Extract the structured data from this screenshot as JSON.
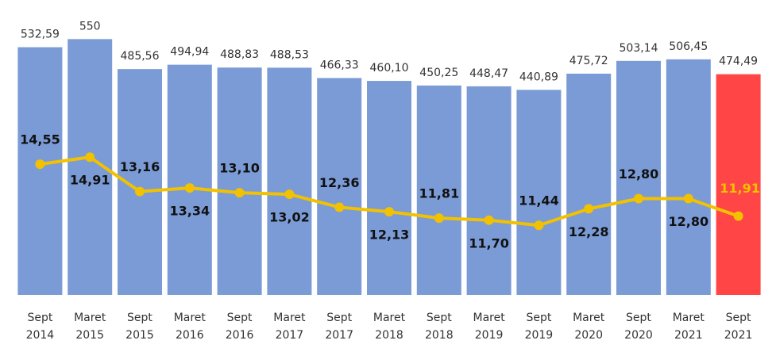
{
  "chart_data": {
    "type": "bar-line",
    "categories": [
      "Sept 2014",
      "Maret 2015",
      "Sept 2015",
      "Maret 2016",
      "Sept 2016",
      "Maret 2017",
      "Sept 2017",
      "Maret 2018",
      "Sept 2018",
      "Maret 2019",
      "Sept 2019",
      "Maret 2020",
      "Sept 2020",
      "Maret 2021",
      "Sept 2021"
    ],
    "ylim": [
      0,
      600
    ],
    "y2lim": [
      7.9,
      22.1
    ],
    "series": [
      {
        "type": "bar",
        "color": "#7b9bd6",
        "highlight_color": "#ff4545",
        "values": [
          532.59,
          550,
          485.56,
          494.94,
          488.83,
          488.53,
          466.33,
          460.1,
          450.25,
          448.47,
          440.89,
          475.72,
          503.14,
          506.45,
          474.49
        ],
        "value_labels": [
          "532,59",
          "550",
          "485,56",
          "494,94",
          "488,83",
          "488,53",
          "466,33",
          "460,10",
          "450,25",
          "448,47",
          "440,89",
          "475,72",
          "503,14",
          "506,45",
          "474,49"
        ]
      },
      {
        "type": "line",
        "axis": "y2",
        "color": "#f2c100",
        "values": [
          14.55,
          14.91,
          13.16,
          13.34,
          13.1,
          13.02,
          12.36,
          12.13,
          11.81,
          11.7,
          11.44,
          12.28,
          12.8,
          12.8,
          11.91
        ],
        "value_labels": [
          "14,55",
          "14,91",
          "13,16",
          "13,34",
          "13,10",
          "13,02",
          "12,36",
          "12,13",
          "11,81",
          "11,70",
          "11,44",
          "12,28",
          "12,80",
          "12,80",
          "11,91"
        ]
      }
    ]
  }
}
